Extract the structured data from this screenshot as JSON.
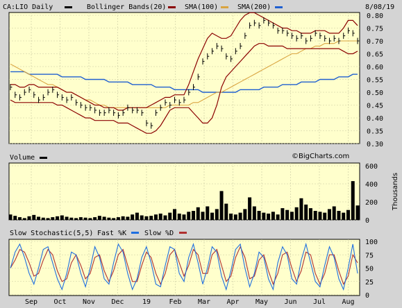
{
  "header": {
    "symbol_label": "CA:LIO Daily",
    "bb_label": "Bollinger Bands(20)",
    "sma100_label": "SMA(100)",
    "sma200_label": "SMA(200)",
    "date": "8/08/19"
  },
  "colors": {
    "panel_bg": "#ffffcc",
    "page_bg": "#d4d4d4",
    "bollinger": "#8b0000",
    "sma100": "#d9a440",
    "sma200": "#1f5fd0",
    "stoch_fast": "#1f6fe0",
    "stoch_slow": "#b03030"
  },
  "watermark": "©BigCharts.com",
  "chart_data": [
    {
      "type": "line",
      "panel": "price",
      "title": "CA:LIO Daily",
      "y_ticks": [
        "0.80",
        "0.75",
        "0.70",
        "0.65",
        "0.60",
        "0.55",
        "0.50",
        "0.45",
        "0.40",
        "0.35",
        "0.30"
      ],
      "ylim": [
        0.3,
        0.8
      ],
      "grid": true,
      "legend_position": "top",
      "x_tick_labels": [
        "Sep",
        "Oct",
        "Nov",
        "Dec",
        "19",
        "Feb",
        "Mar",
        "Apr",
        "May",
        "Jun",
        "Jul",
        "Aug"
      ],
      "series": [
        {
          "name": "CA:LIO Daily",
          "values": [
            0.52,
            0.49,
            0.48,
            0.5,
            0.51,
            0.49,
            0.47,
            0.48,
            0.5,
            0.51,
            0.49,
            0.48,
            0.47,
            0.48,
            0.46,
            0.45,
            0.44,
            0.44,
            0.43,
            0.42,
            0.42,
            0.43,
            0.42,
            0.41,
            0.42,
            0.44,
            0.43,
            0.43,
            0.42,
            0.38,
            0.37,
            0.42,
            0.44,
            0.46,
            0.45,
            0.47,
            0.46,
            0.47,
            0.5,
            0.52,
            0.56,
            0.62,
            0.64,
            0.66,
            0.68,
            0.67,
            0.64,
            0.63,
            0.66,
            0.68,
            0.72,
            0.76,
            0.77,
            0.76,
            0.78,
            0.77,
            0.76,
            0.74,
            0.74,
            0.73,
            0.72,
            0.71,
            0.72,
            0.7,
            0.71,
            0.73,
            0.72,
            0.71,
            0.7,
            0.71,
            0.7,
            0.72,
            0.74,
            0.73,
            0.7
          ]
        },
        {
          "name": "Bollinger Bands(20)",
          "upper": [
            0.53,
            0.53,
            0.52,
            0.52,
            0.53,
            0.53,
            0.52,
            0.52,
            0.52,
            0.52,
            0.52,
            0.51,
            0.5,
            0.5,
            0.49,
            0.48,
            0.47,
            0.46,
            0.45,
            0.45,
            0.44,
            0.44,
            0.44,
            0.43,
            0.43,
            0.44,
            0.44,
            0.44,
            0.44,
            0.44,
            0.45,
            0.46,
            0.47,
            0.48,
            0.48,
            0.49,
            0.49,
            0.49,
            0.53,
            0.58,
            0.63,
            0.67,
            0.71,
            0.73,
            0.72,
            0.71,
            0.71,
            0.72,
            0.75,
            0.78,
            0.8,
            0.81,
            0.81,
            0.8,
            0.79,
            0.78,
            0.77,
            0.76,
            0.75,
            0.75,
            0.74,
            0.74,
            0.73,
            0.73,
            0.73,
            0.74,
            0.74,
            0.74,
            0.73,
            0.73,
            0.73,
            0.75,
            0.78,
            0.78,
            0.76
          ],
          "lower": [
            0.47,
            0.46,
            0.46,
            0.46,
            0.46,
            0.46,
            0.46,
            0.46,
            0.46,
            0.46,
            0.45,
            0.45,
            0.44,
            0.43,
            0.42,
            0.41,
            0.4,
            0.4,
            0.39,
            0.39,
            0.39,
            0.39,
            0.39,
            0.38,
            0.38,
            0.38,
            0.37,
            0.36,
            0.35,
            0.34,
            0.34,
            0.35,
            0.37,
            0.4,
            0.43,
            0.44,
            0.44,
            0.44,
            0.44,
            0.42,
            0.4,
            0.38,
            0.38,
            0.4,
            0.45,
            0.52,
            0.56,
            0.58,
            0.6,
            0.62,
            0.64,
            0.66,
            0.68,
            0.69,
            0.69,
            0.68,
            0.68,
            0.68,
            0.68,
            0.67,
            0.67,
            0.67,
            0.67,
            0.67,
            0.67,
            0.67,
            0.67,
            0.67,
            0.67,
            0.67,
            0.67,
            0.66,
            0.65,
            0.65,
            0.66
          ]
        },
        {
          "name": "SMA(100)",
          "values": [
            0.61,
            0.6,
            0.59,
            0.58,
            0.57,
            0.56,
            0.55,
            0.54,
            0.53,
            0.53,
            0.52,
            0.51,
            0.5,
            0.5,
            0.49,
            0.48,
            0.47,
            0.47,
            0.46,
            0.45,
            0.45,
            0.44,
            0.44,
            0.44,
            0.44,
            0.44,
            0.44,
            0.44,
            0.44,
            0.44,
            0.44,
            0.44,
            0.44,
            0.44,
            0.45,
            0.45,
            0.45,
            0.45,
            0.45,
            0.46,
            0.46,
            0.47,
            0.48,
            0.49,
            0.5,
            0.5,
            0.51,
            0.52,
            0.53,
            0.54,
            0.55,
            0.56,
            0.57,
            0.58,
            0.59,
            0.6,
            0.61,
            0.62,
            0.63,
            0.64,
            0.65,
            0.65,
            0.66,
            0.67,
            0.67,
            0.68,
            0.68,
            0.69,
            0.69,
            0.69,
            0.7,
            0.7,
            0.7,
            0.7,
            0.7
          ]
        },
        {
          "name": "SMA(200)",
          "values": [
            0.58,
            0.58,
            0.58,
            0.58,
            0.57,
            0.57,
            0.57,
            0.57,
            0.57,
            0.57,
            0.57,
            0.56,
            0.56,
            0.56,
            0.56,
            0.56,
            0.55,
            0.55,
            0.55,
            0.55,
            0.55,
            0.54,
            0.54,
            0.54,
            0.54,
            0.54,
            0.53,
            0.53,
            0.53,
            0.53,
            0.53,
            0.52,
            0.52,
            0.52,
            0.52,
            0.51,
            0.51,
            0.51,
            0.51,
            0.51,
            0.51,
            0.5,
            0.5,
            0.5,
            0.5,
            0.5,
            0.5,
            0.5,
            0.5,
            0.51,
            0.51,
            0.51,
            0.51,
            0.51,
            0.52,
            0.52,
            0.52,
            0.52,
            0.53,
            0.53,
            0.53,
            0.53,
            0.54,
            0.54,
            0.54,
            0.54,
            0.55,
            0.55,
            0.55,
            0.55,
            0.56,
            0.56,
            0.56,
            0.57,
            0.57
          ]
        }
      ]
    },
    {
      "type": "bar",
      "panel": "volume",
      "title": "Volume",
      "ylabel": "Thousands",
      "y_ticks": [
        "600",
        "400",
        "200",
        "0"
      ],
      "ylim": [
        0,
        600
      ],
      "values": [
        60,
        45,
        30,
        20,
        40,
        55,
        35,
        25,
        20,
        30,
        40,
        50,
        35,
        25,
        20,
        30,
        25,
        20,
        30,
        45,
        35,
        25,
        20,
        30,
        40,
        35,
        60,
        80,
        50,
        40,
        45,
        60,
        70,
        50,
        80,
        120,
        70,
        60,
        90,
        100,
        140,
        90,
        150,
        80,
        120,
        320,
        180,
        70,
        60,
        80,
        120,
        250,
        150,
        100,
        80,
        70,
        90,
        60,
        130,
        110,
        90,
        140,
        240,
        170,
        130,
        100,
        90,
        80,
        120,
        150,
        100,
        80,
        110,
        430,
        160
      ]
    },
    {
      "type": "line",
      "panel": "stochastic",
      "title": "Slow Stochastic(5,5)",
      "y_ticks": [
        "100",
        "75",
        "50",
        "25",
        "0"
      ],
      "ylim": [
        0,
        100
      ],
      "series": [
        {
          "name": "Fast %K",
          "values": [
            50,
            80,
            95,
            70,
            40,
            20,
            50,
            85,
            90,
            60,
            30,
            10,
            40,
            80,
            75,
            40,
            15,
            50,
            90,
            70,
            30,
            20,
            60,
            95,
            80,
            40,
            10,
            30,
            70,
            90,
            60,
            20,
            15,
            55,
            90,
            85,
            40,
            25,
            70,
            95,
            60,
            20,
            50,
            90,
            80,
            35,
            10,
            45,
            85,
            95,
            50,
            15,
            40,
            80,
            70,
            30,
            10,
            60,
            90,
            75,
            30,
            20,
            65,
            95,
            60,
            25,
            15,
            55,
            90,
            70,
            30,
            10,
            50,
            95,
            40
          ]
        },
        {
          "name": "Slow %D",
          "values": [
            50,
            65,
            85,
            80,
            60,
            35,
            40,
            65,
            85,
            75,
            45,
            25,
            30,
            60,
            75,
            55,
            30,
            40,
            70,
            75,
            45,
            25,
            45,
            75,
            85,
            55,
            25,
            25,
            55,
            80,
            70,
            40,
            20,
            40,
            75,
            85,
            60,
            35,
            55,
            85,
            75,
            40,
            40,
            75,
            85,
            55,
            25,
            35,
            70,
            90,
            70,
            30,
            35,
            65,
            75,
            45,
            20,
            40,
            75,
            80,
            50,
            25,
            45,
            80,
            75,
            40,
            20,
            40,
            75,
            75,
            45,
            20,
            35,
            75,
            60
          ]
        }
      ]
    }
  ]
}
